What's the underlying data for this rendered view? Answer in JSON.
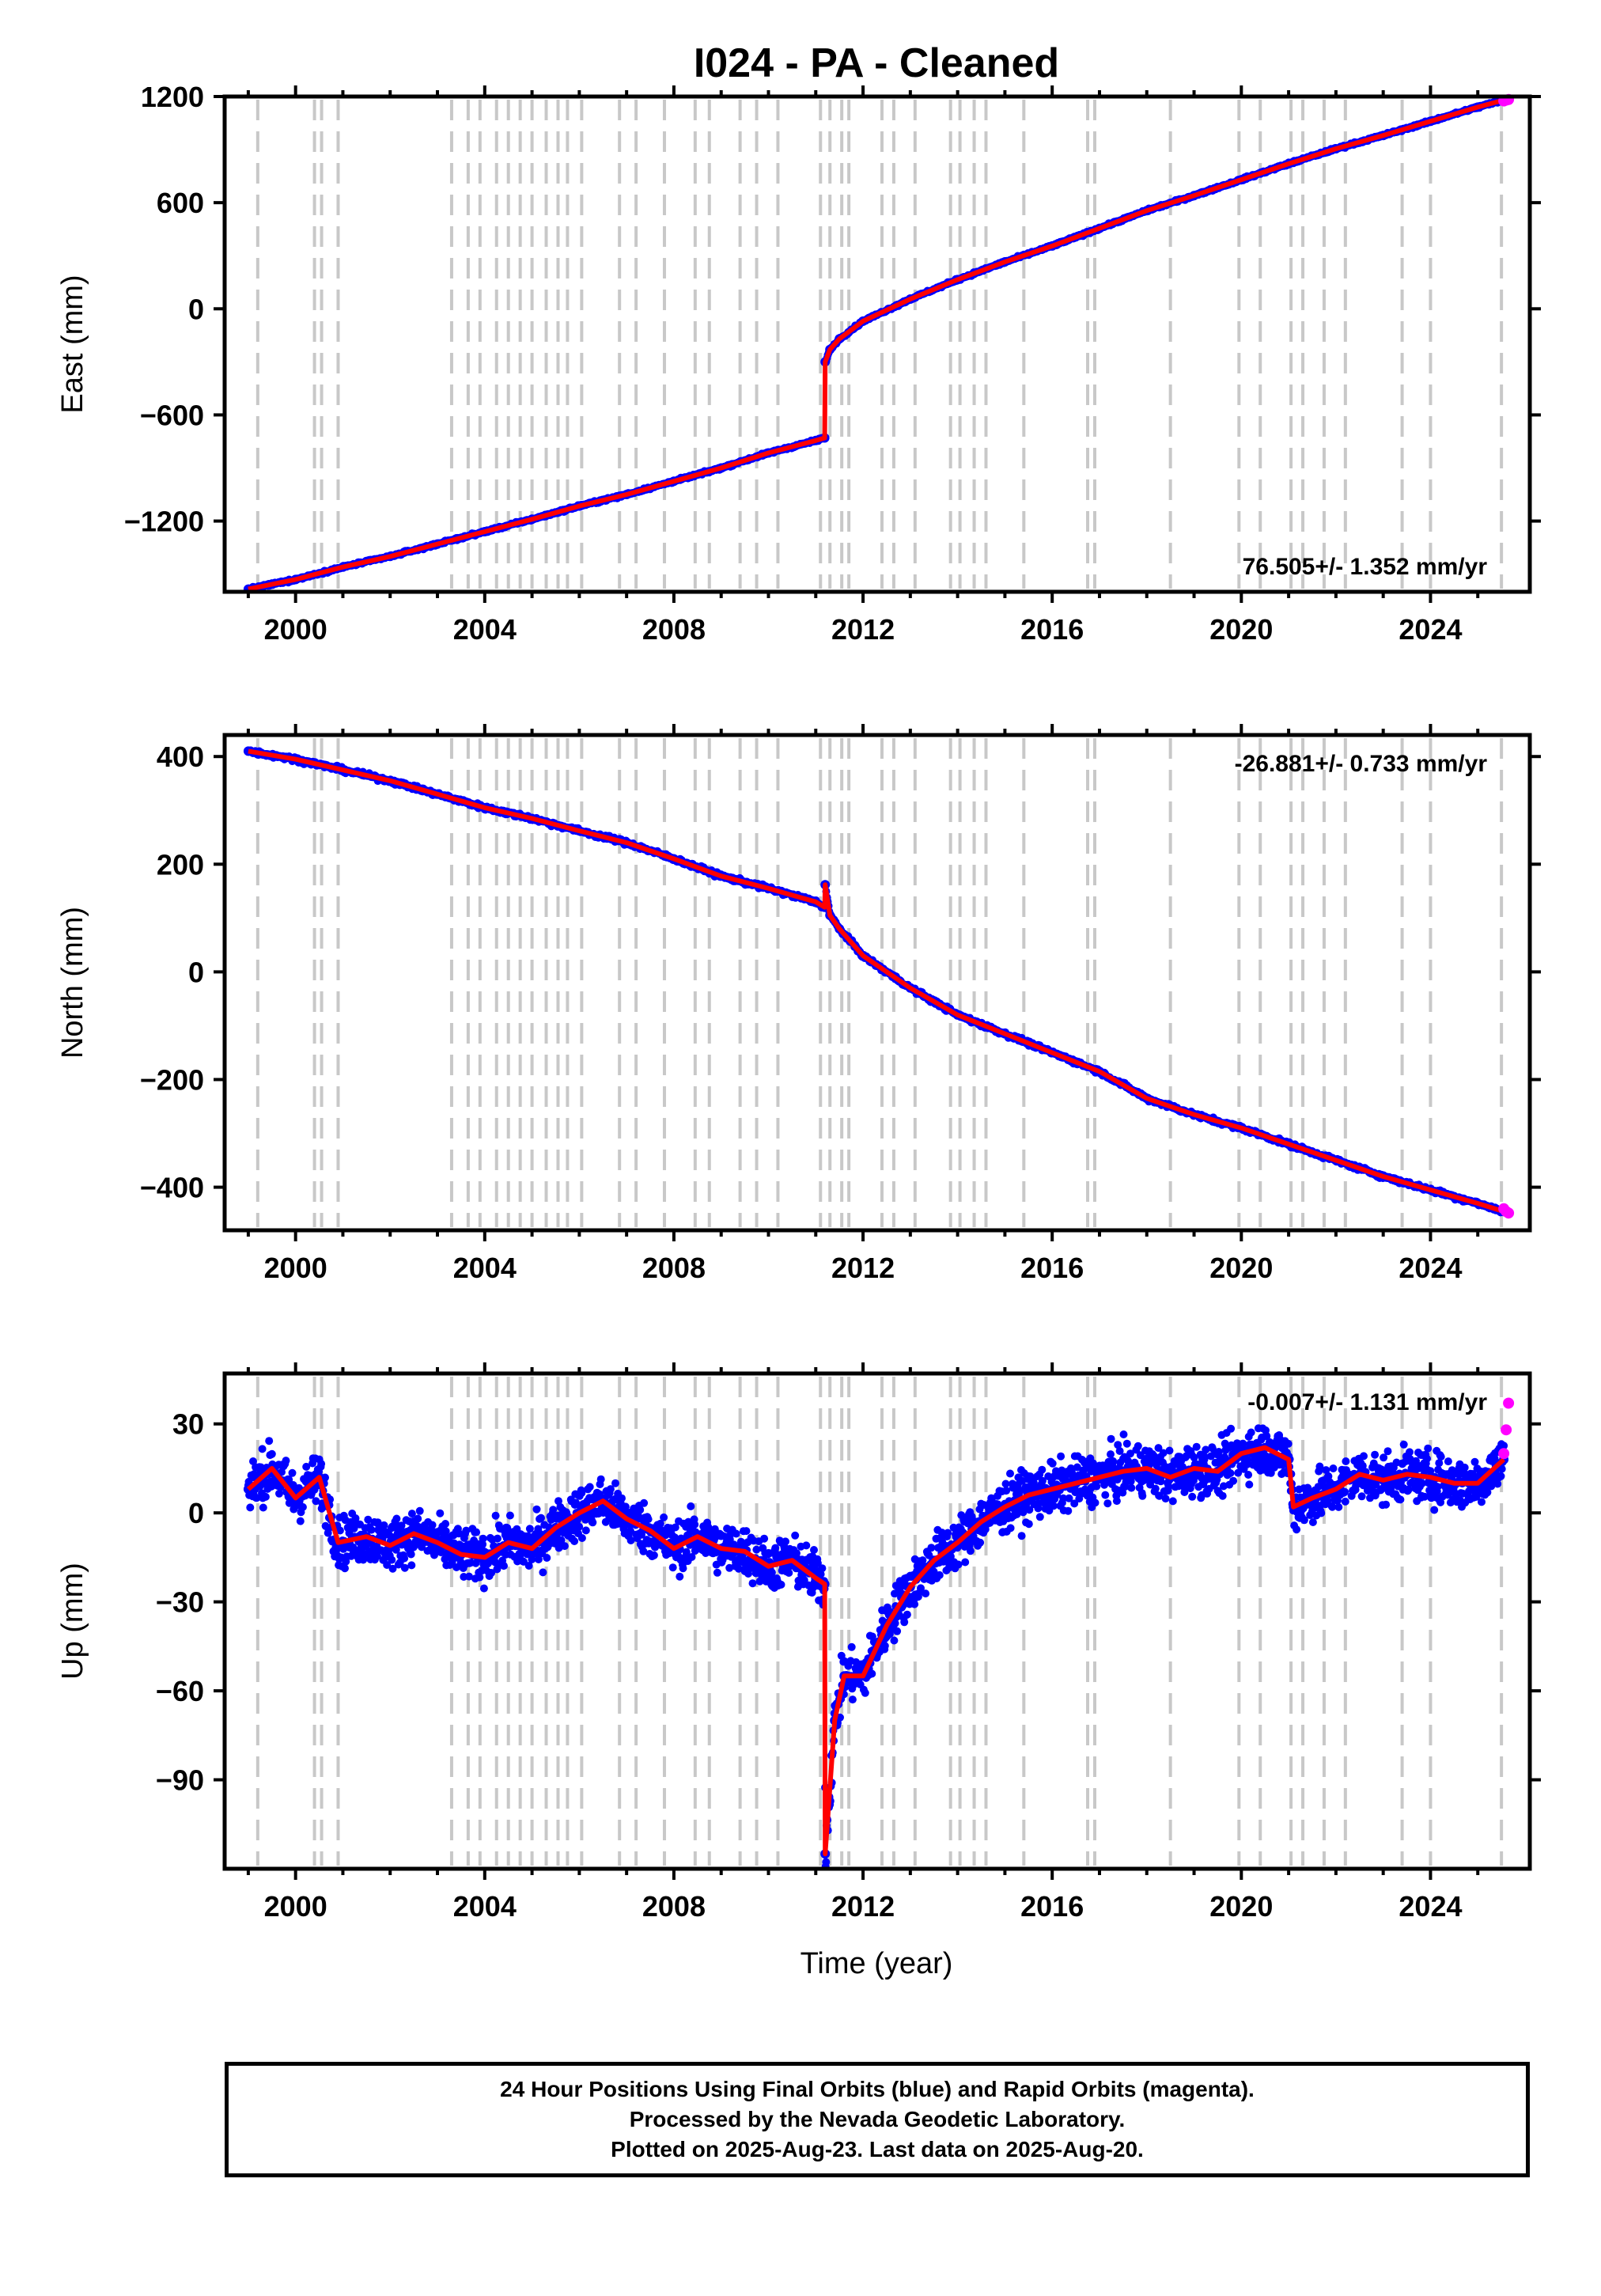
{
  "title": "I024  - PA - Cleaned",
  "footer": {
    "line1": "24 Hour Positions Using Final Orbits (blue) and Rapid Orbits (magenta).",
    "line2": "Processed by the Nevada Geodetic Laboratory.",
    "line3": "Plotted on 2025-Aug-23. Last data on 2025-Aug-20."
  },
  "colors": {
    "final_orbits": "#0000ff",
    "rapid_orbits": "#ff00ff",
    "model": "#ff0000",
    "event_lines": "#c8c8c8"
  },
  "chart_data": [
    {
      "type": "scatter",
      "component": "east",
      "ylabel": "East (mm)",
      "xlabel": "",
      "xlim": [
        1998.5,
        2026.1
      ],
      "ylim": [
        -1600,
        1200
      ],
      "xticks": [
        "2000",
        "2004",
        "2008",
        "2012",
        "2016",
        "2020",
        "2024"
      ],
      "yticks": [
        "1200",
        "600",
        "0",
        "−600",
        "−1200"
      ],
      "rate_label": "76.505+/- 1.352 mm/yr",
      "rate_position": "bottom-right",
      "event_years": [
        1999.2,
        2000.4,
        2000.55,
        2000.9,
        2003.3,
        2003.65,
        2003.9,
        2004.25,
        2004.5,
        2004.75,
        2005.0,
        2005.3,
        2005.55,
        2005.75,
        2006.05,
        2006.85,
        2007.2,
        2007.8,
        2008.45,
        2008.75,
        2009.4,
        2009.75,
        2010.2,
        2011.1,
        2011.3,
        2011.55,
        2011.7,
        2012.4,
        2012.65,
        2013.1,
        2013.85,
        2014.05,
        2014.35,
        2014.6,
        2015.4,
        2016.75,
        2016.9,
        2018.5,
        2019.95,
        2020.4,
        2021.05,
        2021.3,
        2021.75,
        2022.2,
        2023.4,
        2024.0,
        2025.5
      ],
      "series": [
        {
          "name": "Final Orbits",
          "x": [
            1999.0,
            2000.0,
            2001.0,
            2002.0,
            2003.0,
            2004.0,
            2005.0,
            2006.0,
            2007.0,
            2008.0,
            2009.0,
            2010.0,
            2011.0,
            2011.19,
            2011.2,
            2011.3,
            2011.5,
            2012.0,
            2013.0,
            2014.0,
            2015.0,
            2016.0,
            2017.0,
            2018.0,
            2019.0,
            2020.0,
            2021.0,
            2022.0,
            2023.0,
            2024.0,
            2025.0,
            2025.55
          ],
          "y": [
            -1585,
            -1530,
            -1460,
            -1400,
            -1330,
            -1260,
            -1190,
            -1115,
            -1050,
            -975,
            -900,
            -815,
            -745,
            -730,
            -300,
            -230,
            -170,
            -70,
            55,
            165,
            265,
            355,
            455,
            555,
            640,
            730,
            820,
            905,
            980,
            1060,
            1140,
            1180
          ]
        },
        {
          "name": "Rapid Orbits",
          "x": [
            2025.55,
            2025.6,
            2025.65
          ],
          "y": [
            1175,
            1180,
            1183
          ]
        }
      ]
    },
    {
      "type": "scatter",
      "component": "north",
      "ylabel": "North (mm)",
      "xlabel": "",
      "xlim": [
        1998.5,
        2026.1
      ],
      "ylim": [
        -480,
        440
      ],
      "xticks": [
        "2000",
        "2004",
        "2008",
        "2012",
        "2016",
        "2020",
        "2024"
      ],
      "yticks": [
        "400",
        "200",
        "0",
        "−200",
        "−400"
      ],
      "rate_label": "-26.881+/- 0.733 mm/yr",
      "rate_position": "top-right",
      "series": [
        {
          "name": "Final Orbits",
          "x": [
            1999.0,
            2000.0,
            2001.0,
            2002.0,
            2003.0,
            2004.0,
            2005.0,
            2006.0,
            2007.0,
            2008.0,
            2009.0,
            2010.0,
            2011.0,
            2011.19,
            2011.2,
            2011.3,
            2011.5,
            2012.0,
            2013.0,
            2014.0,
            2015.0,
            2016.0,
            2017.0,
            2018.0,
            2019.0,
            2020.0,
            2021.0,
            2022.0,
            2023.0,
            2024.0,
            2025.0,
            2025.55
          ],
          "y": [
            410,
            395,
            375,
            355,
            330,
            305,
            285,
            262,
            240,
            210,
            178,
            155,
            130,
            120,
            162,
            105,
            80,
            30,
            -30,
            -80,
            -115,
            -150,
            -185,
            -235,
            -265,
            -290,
            -320,
            -350,
            -380,
            -405,
            -430,
            -445
          ]
        },
        {
          "name": "Rapid Orbits",
          "x": [
            2025.55,
            2025.6,
            2025.65
          ],
          "y": [
            -440,
            -445,
            -448
          ]
        }
      ]
    },
    {
      "type": "scatter",
      "component": "up",
      "ylabel": "Up (mm)",
      "xlabel": "Time (year)",
      "xlim": [
        1998.5,
        2026.1
      ],
      "ylim": [
        -120,
        47
      ],
      "xticks": [
        "2000",
        "2004",
        "2008",
        "2012",
        "2016",
        "2020",
        "2024"
      ],
      "yticks": [
        "30",
        "0",
        "−30",
        "−60",
        "−90"
      ],
      "rate_label": "-0.007+/- 1.131 mm/yr",
      "rate_position": "top-right",
      "series": [
        {
          "name": "Final Orbits",
          "x": [
            1999.0,
            1999.5,
            2000.0,
            2000.5,
            2000.9,
            2001.5,
            2002.0,
            2002.5,
            2003.0,
            2003.5,
            2004.0,
            2004.5,
            2005.0,
            2005.5,
            2006.0,
            2006.5,
            2007.0,
            2007.5,
            2008.0,
            2008.5,
            2009.0,
            2009.5,
            2010.0,
            2010.5,
            2011.0,
            2011.19,
            2011.2,
            2011.4,
            2011.6,
            2012.0,
            2012.5,
            2013.0,
            2013.5,
            2014.0,
            2014.5,
            2015.0,
            2015.5,
            2016.0,
            2016.5,
            2017.0,
            2017.5,
            2018.0,
            2018.5,
            2019.0,
            2019.5,
            2020.0,
            2020.5,
            2021.0,
            2021.1,
            2021.5,
            2022.0,
            2022.5,
            2023.0,
            2023.5,
            2024.0,
            2024.5,
            2025.0,
            2025.55
          ],
          "y": [
            8,
            15,
            5,
            12,
            -10,
            -8,
            -11,
            -7,
            -10,
            -14,
            -15,
            -10,
            -12,
            -5,
            0,
            4,
            -2,
            -6,
            -12,
            -8,
            -12,
            -13,
            -18,
            -16,
            -22,
            -24,
            -115,
            -70,
            -55,
            -55,
            -38,
            -25,
            -16,
            -10,
            -3,
            2,
            6,
            8,
            10,
            12,
            14,
            15,
            12,
            15,
            14,
            20,
            22,
            18,
            2,
            5,
            8,
            13,
            11,
            13,
            12,
            10,
            10,
            18
          ]
        },
        {
          "name": "Rapid Orbits",
          "x": [
            2025.55,
            2025.6,
            2025.65
          ],
          "y": [
            20,
            28,
            37
          ]
        }
      ]
    }
  ]
}
